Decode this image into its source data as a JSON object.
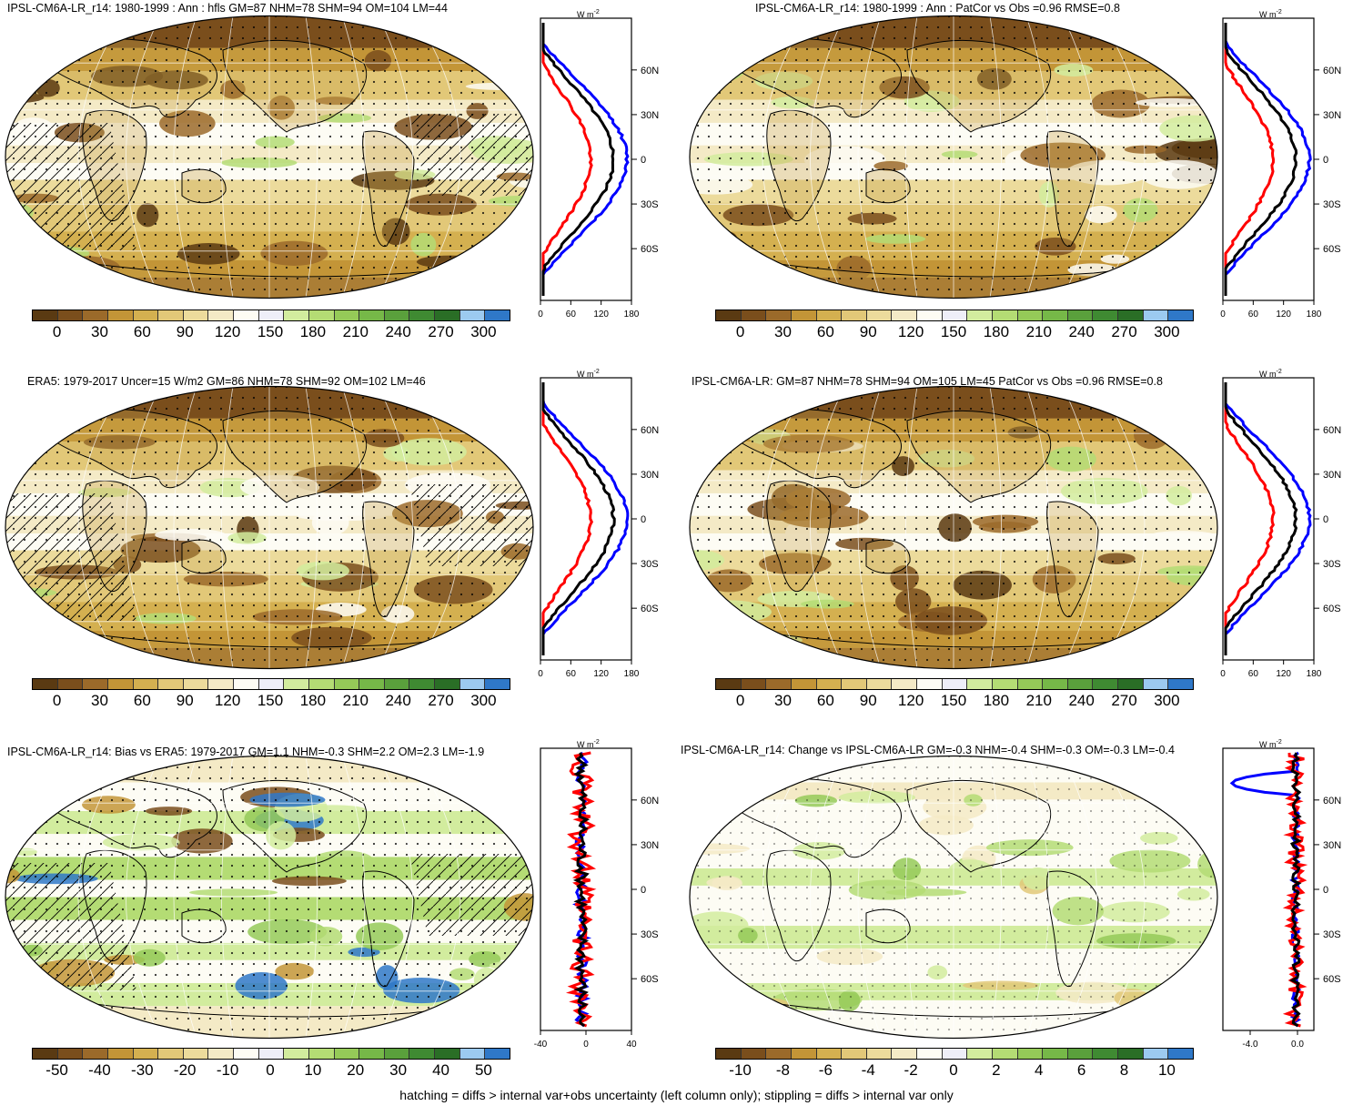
{
  "panels": [
    {
      "title": "IPSL-CM6A-LR_r14: 1980-1999 : Ann : hfls GM=87 NHM=78 SHM=94 OM=104 LM=44",
      "kind": "abs",
      "hatch": true,
      "cb": "abs",
      "zx": "abs"
    },
    {
      "title": "IPSL-CM6A-LR_r14: 1980-1999 : Ann : PatCor vs Obs =0.96 RMSE=0.8",
      "kind": "abs",
      "hatch": false,
      "cb": "abs",
      "zx": "abs"
    },
    {
      "title": "ERA5: 1979-2017 Uncer=15 W/m2 GM=86 NHM=78 SHM=92 OM=102 LM=46",
      "kind": "abs",
      "hatch": true,
      "cb": "abs",
      "zx": "abs"
    },
    {
      "title": "IPSL-CM6A-LR: GM=87 NHM=78 SHM=94 OM=105 LM=45 PatCor vs Obs =0.96 RMSE=0.8",
      "kind": "abs",
      "hatch": false,
      "cb": "abs",
      "zx": "abs"
    },
    {
      "title": "IPSL-CM6A-LR_r14: Bias vs ERA5: 1979-2017 GM=1.1 NHM=-0.3 SHM=2.2 OM=2.3 LM=-1.9",
      "kind": "bias",
      "hatch": true,
      "cb": "bias",
      "zx": "bias"
    },
    {
      "title": "IPSL-CM6A-LR_r14: Change vs IPSL-CM6A-LR GM=-0.3 NHM=-0.4 SHM=-0.3 OM=-0.3 LM=-0.4",
      "kind": "change",
      "hatch": false,
      "cb": "change",
      "zx": "change"
    }
  ],
  "zonal_unit": "W m",
  "zonal_unit_exp": "-2",
  "lat_labels": [
    "60N",
    "30N",
    "0",
    "30S",
    "60S"
  ],
  "zonal_axes": {
    "abs": [
      "0",
      "60",
      "120",
      "180"
    ],
    "bias": [
      "-40",
      "0",
      "40"
    ],
    "change": [
      "-4.0",
      "0.0"
    ]
  },
  "colorbar_labels": {
    "abs": [
      "0",
      "30",
      "60",
      "90",
      "120",
      "150",
      "180",
      "210",
      "240",
      "270",
      "300"
    ],
    "bias": [
      "-50",
      "-40",
      "-30",
      "-20",
      "-10",
      "0",
      "10",
      "20",
      "30",
      "40",
      "50"
    ],
    "change": [
      "-10",
      "-8",
      "-6",
      "-4",
      "-2",
      "0",
      "2",
      "4",
      "6",
      "8",
      "10"
    ]
  },
  "colors": {
    "palette": [
      "#5a3a12",
      "#7a4e1c",
      "#9b6a2a",
      "#c39537",
      "#d4b050",
      "#e2c878",
      "#ecdb9c",
      "#f4eac6",
      "#fdfcf4",
      "#eeeef8",
      "#d2ec9e",
      "#b4dc74",
      "#95ca58",
      "#76b848",
      "#5aa03c",
      "#3f8a32",
      "#2a6e26",
      "#9ccaf0",
      "#2f78c8"
    ],
    "obs_line": "#0000ff",
    "model_line": "#ff0000",
    "mean_line": "#000000"
  },
  "footnote": "hatching = diffs > internal var+obs uncertainty (left column only); stippling = diffs > internal var only"
}
